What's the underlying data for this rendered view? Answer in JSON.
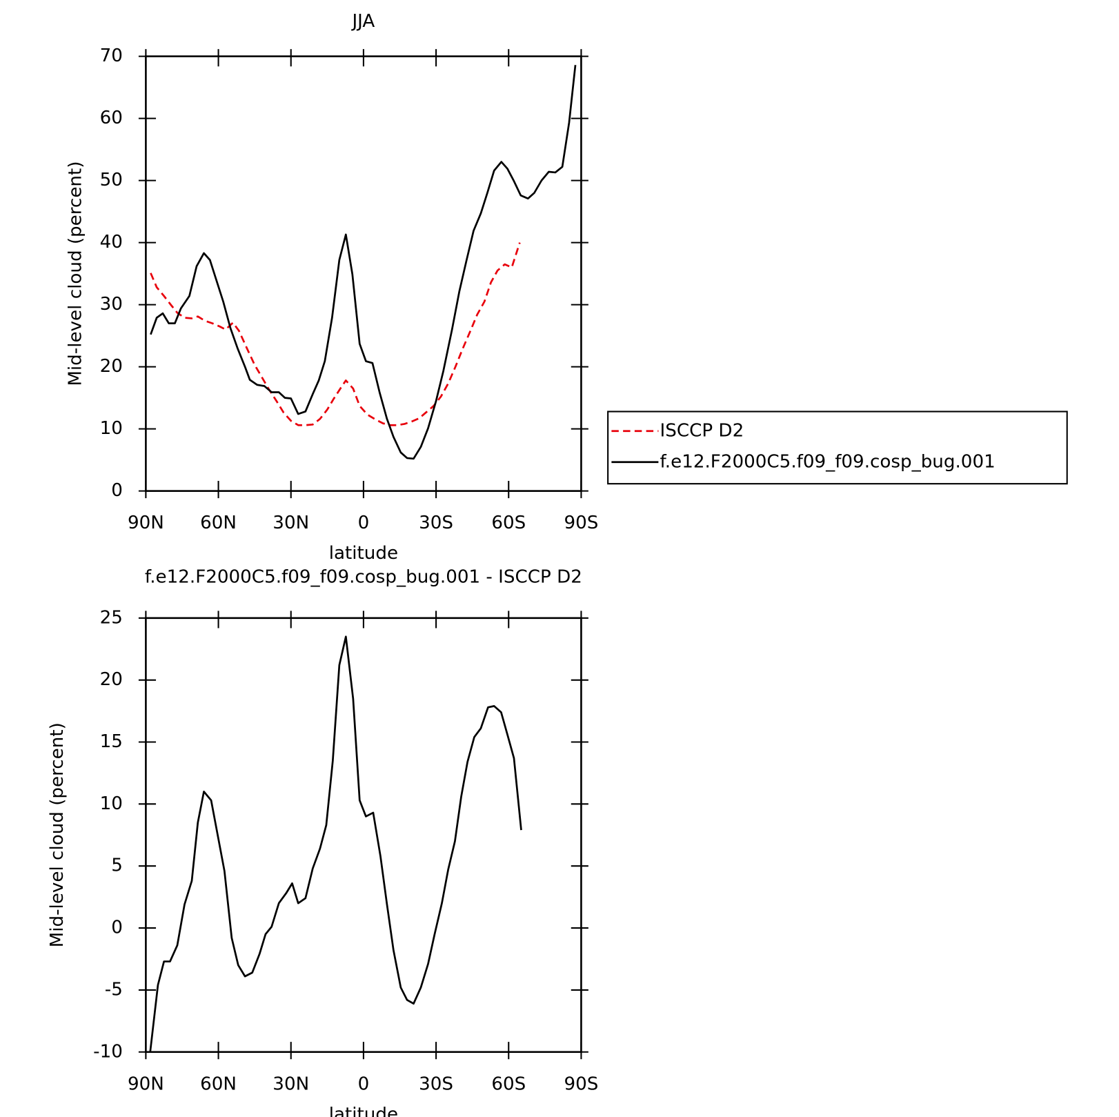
{
  "chart_data": [
    {
      "type": "line",
      "title": "JJA",
      "xlabel": "latitude",
      "ylabel": "Mid-level cloud (percent)",
      "xlim": [
        90,
        -90
      ],
      "xticks": [
        {
          "value": 90,
          "label": "90N"
        },
        {
          "value": 60,
          "label": "60N"
        },
        {
          "value": 30,
          "label": "30N"
        },
        0,
        {
          "value": -30,
          "label": "30S"
        },
        {
          "value": -60,
          "label": "60S"
        },
        {
          "value": -90,
          "label": "90S"
        }
      ],
      "ylim": [
        0,
        70
      ],
      "yticks": [
        0,
        10,
        20,
        30,
        40,
        50,
        60,
        70
      ],
      "legend": "right",
      "series": [
        {
          "name": "ISCCP D2",
          "color": "#e8000b",
          "style": "dashed",
          "x": [
            88,
            85.5,
            82.5,
            79.5,
            77,
            74,
            71,
            68.5,
            65.5,
            62.5,
            59.5,
            57,
            54,
            51.5,
            48,
            45,
            42,
            39,
            36,
            33,
            30,
            27,
            24,
            21,
            18,
            15,
            12.4,
            9.4,
            7.3,
            4.3,
            1.6,
            -1.6,
            -5,
            -8,
            -11,
            -14,
            -17,
            -20,
            -23,
            -26,
            -29,
            -32,
            -35,
            -38,
            -41,
            -44,
            -47,
            -50,
            -52.7,
            -55.4,
            -58.4,
            -61.3,
            -64.6
          ],
          "values": [
            35.1,
            32.8,
            31.4,
            29.9,
            28.7,
            27.9,
            27.8,
            28.1,
            27.4,
            27,
            26.5,
            26,
            27.1,
            25.8,
            22.8,
            20.3,
            18.3,
            16.3,
            14.5,
            12.6,
            11.3,
            10.6,
            10.6,
            10.7,
            11.6,
            13.1,
            14.8,
            16.6,
            17.8,
            16.5,
            13.7,
            12.3,
            11.5,
            10.9,
            10.6,
            10.6,
            10.8,
            11.2,
            11.7,
            12.7,
            13.7,
            15.2,
            17.3,
            20,
            22.9,
            25.6,
            28.4,
            30.5,
            33.6,
            35.5,
            36.5,
            36,
            40
          ]
        },
        {
          "name": "f.e12.F2000C5.f09_f09.cosp_bug.001",
          "color": "#000000",
          "style": "solid",
          "x": [
            88,
            85.5,
            83,
            80.5,
            78,
            75.5,
            72,
            69,
            66,
            63.5,
            58,
            55,
            52,
            49,
            47,
            44,
            41,
            38,
            35,
            32.5,
            30,
            27,
            24,
            21,
            18.5,
            16,
            13,
            10,
            7.3,
            4.6,
            1.6,
            -1,
            -3.7,
            -6.7,
            -9.7,
            -12.4,
            -15.4,
            -18,
            -20.7,
            -23.7,
            -26.7,
            -30,
            -33,
            -36.6,
            -39.6,
            -42.5,
            -45.5,
            -48.5,
            -51.2,
            -54,
            -57,
            -59.5,
            -62.2,
            -65,
            -68,
            -70.6,
            -73.6,
            -76.6,
            -79.3,
            -82.2,
            -85,
            -87.6
          ],
          "values": [
            25.2,
            27.9,
            28.6,
            27,
            27,
            29.4,
            31.4,
            36.2,
            38.3,
            37.2,
            30.5,
            26.2,
            22.9,
            20,
            17.9,
            17.1,
            16.9,
            15.9,
            15.9,
            15,
            14.9,
            12.4,
            12.8,
            15.6,
            17.8,
            20.9,
            27.9,
            37.2,
            41.3,
            34.9,
            23.7,
            20.9,
            20.6,
            15.8,
            11.6,
            8.7,
            6.2,
            5.3,
            5.2,
            7.1,
            10.1,
            14.5,
            19.3,
            26,
            32.1,
            37,
            41.9,
            44.7,
            48,
            51.6,
            53,
            51.9,
            49.9,
            47.6,
            47.1,
            48,
            50,
            51.4,
            51.3,
            52.2,
            59.3,
            68.6
          ]
        }
      ]
    },
    {
      "type": "line",
      "title": "f.e12.F2000C5.f09_f09.cosp_bug.001 - ISCCP D2",
      "xlabel": "latitude",
      "ylabel": "Mid-level cloud (percent)",
      "xlim": [
        90,
        -90
      ],
      "xticks": [
        {
          "value": 90,
          "label": "90N"
        },
        {
          "value": 60,
          "label": "60N"
        },
        {
          "value": 30,
          "label": "30N"
        },
        0,
        {
          "value": -30,
          "label": "30S"
        },
        {
          "value": -60,
          "label": "60S"
        },
        {
          "value": -90,
          "label": "90S"
        }
      ],
      "ylim": [
        -10,
        25
      ],
      "yticks": [
        -10,
        -5,
        0,
        5,
        10,
        15,
        20,
        25
      ],
      "series": [
        {
          "color": "#000000",
          "style": "solid",
          "x": [
            88.2,
            85,
            82.5,
            80,
            77,
            74,
            71,
            68.5,
            66,
            63,
            57.5,
            54.5,
            51.8,
            49,
            46,
            43,
            40.5,
            38,
            35,
            32,
            29.5,
            27,
            24,
            21,
            18,
            15.4,
            12.7,
            10,
            7.3,
            4.3,
            1.6,
            -1,
            -4,
            -7,
            -9.7,
            -12.4,
            -15.4,
            -18,
            -20.7,
            -23.7,
            -26.7,
            -29.4,
            -32.4,
            -35,
            -37.8,
            -40.4,
            -43,
            -45.8,
            -48.5,
            -51.5,
            -54,
            -56.9,
            -59.5,
            -62.2,
            -65.2
          ],
          "values": [
            -10,
            -4.6,
            -2.7,
            -2.7,
            -1.4,
            1.9,
            3.8,
            8.5,
            11,
            10.3,
            4.6,
            -0.8,
            -3,
            -3.9,
            -3.6,
            -2.1,
            -0.5,
            0.1,
            2,
            2.8,
            3.6,
            2,
            2.4,
            4.8,
            6.4,
            8.3,
            13.5,
            21.2,
            23.5,
            18.5,
            10.3,
            9,
            9.3,
            5.8,
            1.9,
            -1.8,
            -4.8,
            -5.8,
            -6.1,
            -4.8,
            -2.9,
            -0.5,
            2,
            4.7,
            7,
            10.6,
            13.4,
            15.4,
            16.1,
            17.8,
            17.9,
            17.4,
            15.6,
            13.7,
            7.9
          ]
        }
      ]
    }
  ]
}
